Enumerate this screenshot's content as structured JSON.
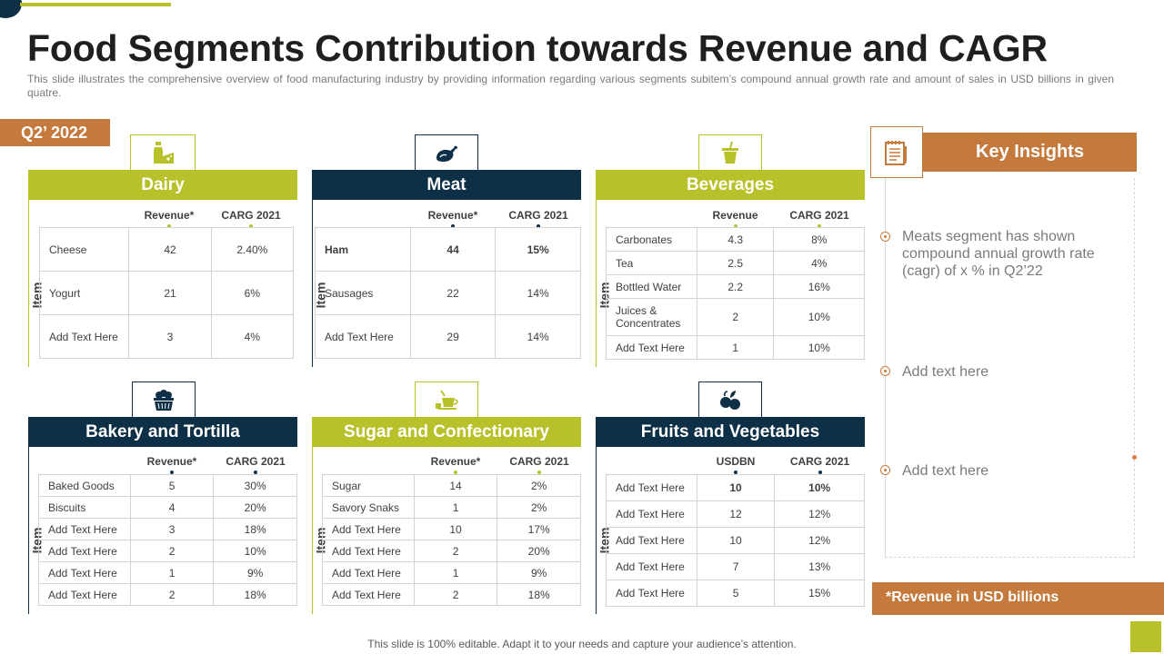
{
  "title": "Food Segments Contribution towards Revenue and CAGR",
  "subtitle": "This slide illustrates the comprehensive overview of food manufacturing industry by providing information regarding various segments subitem’s compound annual growth rate and amount of sales in USD billions in given quatre.",
  "quarter": "Q2’ 2022",
  "item_label": "Item",
  "panels": {
    "dairy": {
      "title": "Dairy",
      "icon": "milk-cheese-icon",
      "col1": "Revenue*",
      "col2": "CARG  2021",
      "rows": [
        {
          "name": "Cheese",
          "v1": "42",
          "v2": "2.40%"
        },
        {
          "name": "Yogurt",
          "v1": "21",
          "v2": "6%"
        },
        {
          "name": "Add Text Here",
          "v1": "3",
          "v2": "4%"
        }
      ]
    },
    "meat": {
      "title": "Meat",
      "icon": "roast-chicken-icon",
      "col1": "Revenue*",
      "col2": "CARG  2021",
      "rows": [
        {
          "name": "Ham",
          "v1": "44",
          "v2": "15%"
        },
        {
          "name": "Sausages",
          "v1": "22",
          "v2": "14%"
        },
        {
          "name": "Add Text Here",
          "v1": "29",
          "v2": "14%"
        }
      ]
    },
    "beverages": {
      "title": "Beverages",
      "icon": "drink-cup-icon",
      "col1": "Revenue",
      "col2": "CARG  2021",
      "rows": [
        {
          "name": "Carbonates",
          "v1": "4.3",
          "v2": "8%"
        },
        {
          "name": "Tea",
          "v1": "2.5",
          "v2": "4%"
        },
        {
          "name": "Bottled Water",
          "v1": "2.2",
          "v2": "16%"
        },
        {
          "name": "Juices & Concentrates",
          "v1": "2",
          "v2": "10%"
        },
        {
          "name": "Add Text Here",
          "v1": "1",
          "v2": "10%"
        }
      ]
    },
    "bakery": {
      "title": "Bakery and Tortilla",
      "icon": "bread-basket-icon",
      "col1": "Revenue*",
      "col2": "CARG  2021",
      "rows": [
        {
          "name": "Baked Goods",
          "v1": "5",
          "v2": "30%"
        },
        {
          "name": "Biscuits",
          "v1": "4",
          "v2": "20%"
        },
        {
          "name": "Add Text Here",
          "v1": "3",
          "v2": "18%"
        },
        {
          "name": "Add Text Here",
          "v1": "2",
          "v2": "10%"
        },
        {
          "name": "Add Text Here",
          "v1": "1",
          "v2": "9%"
        },
        {
          "name": "Add Text Here",
          "v1": "2",
          "v2": "18%"
        }
      ]
    },
    "sugar": {
      "title": "Sugar and Confectionary",
      "icon": "candy-cup-icon",
      "col1": "Revenue*",
      "col2": "CARG  2021",
      "rows": [
        {
          "name": "Sugar",
          "v1": "14",
          "v2": "2%"
        },
        {
          "name": "Savory Snaks",
          "v1": "1",
          "v2": "2%"
        },
        {
          "name": "Add Text Here",
          "v1": "10",
          "v2": "17%"
        },
        {
          "name": "Add Text Here",
          "v1": "2",
          "v2": "20%"
        },
        {
          "name": "Add Text Here",
          "v1": "1",
          "v2": "9%"
        },
        {
          "name": "Add Text Here",
          "v1": "2",
          "v2": "18%"
        }
      ]
    },
    "fruits": {
      "title": "Fruits and Vegetables",
      "icon": "fruits-icon",
      "col1": "USDBN",
      "col2": "CARG  2021",
      "rows": [
        {
          "name": "Add Text Here",
          "v1": "10",
          "v2": "10%"
        },
        {
          "name": "Add Text Here",
          "v1": "12",
          "v2": "12%"
        },
        {
          "name": "Add Text Here",
          "v1": "10",
          "v2": "12%"
        },
        {
          "name": "Add Text Here",
          "v1": "7",
          "v2": "13%"
        },
        {
          "name": "Add Text Here",
          "v1": "5",
          "v2": "15%"
        }
      ]
    }
  },
  "insights": {
    "title": "Key Insights",
    "icon": "notepad-icon",
    "items": [
      "Meats segment has shown compound annual growth rate (cagr) of x % in Q2’22",
      "Add text here",
      "Add text here"
    ]
  },
  "note": "*Revenue in USD billions",
  "footer": "This slide is 100% editable. Adapt it to your needs and capture your audience’s attention.",
  "colors": {
    "olive": "#b8c02a",
    "navy": "#0e3047",
    "orange": "#c57a3d"
  }
}
